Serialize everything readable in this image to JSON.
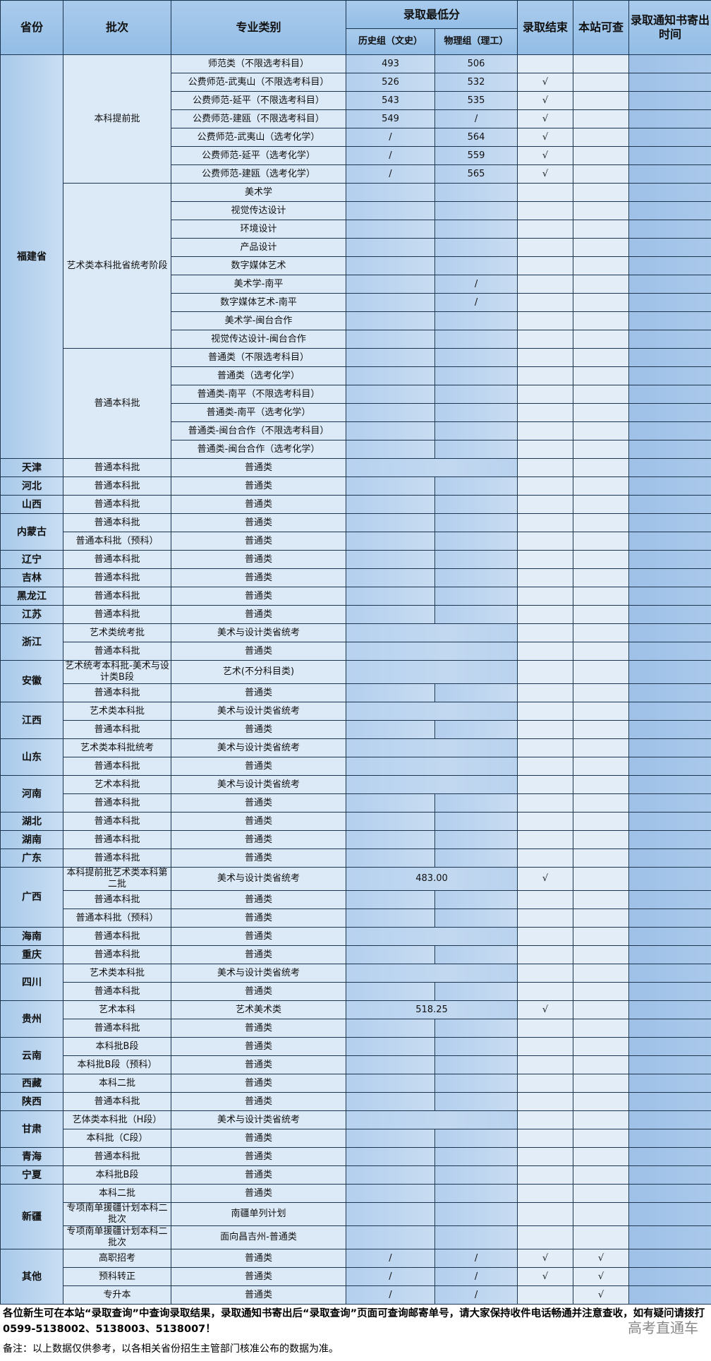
{
  "header": {
    "province": "省份",
    "batch": "批次",
    "major": "专业类别",
    "min_score": "录取最低分",
    "history": "历史组（文史）",
    "physics": "物理组（理工）",
    "done": "录取结束",
    "query": "本站可查",
    "notice_time": "录取通知书寄出时间"
  },
  "provinces": [
    {
      "name": "福建省",
      "batches": [
        {
          "name": "本科提前批",
          "rows": [
            {
              "major": "师范类（不限选考科目）",
              "history": "493",
              "physics": "506",
              "done": ""
            },
            {
              "major": "公费师范-武夷山（不限选考科目）",
              "history": "526",
              "physics": "532",
              "done": "√"
            },
            {
              "major": "公费师范-延平（不限选考科目）",
              "history": "543",
              "physics": "535",
              "done": "√"
            },
            {
              "major": "公费师范-建瓯（不限选考科目）",
              "history": "549",
              "physics": "/",
              "done": "√"
            },
            {
              "major": "公费师范-武夷山（选考化学）",
              "history": "/",
              "physics": "564",
              "done": "√"
            },
            {
              "major": "公费师范-延平（选考化学）",
              "history": "/",
              "physics": "559",
              "done": "√"
            },
            {
              "major": "公费师范-建瓯（选考化学）",
              "history": "/",
              "physics": "565",
              "done": "√"
            }
          ]
        },
        {
          "name": "艺术类本科批省统考阶段",
          "rows": [
            {
              "major": "美术学"
            },
            {
              "major": "视觉传达设计"
            },
            {
              "major": "环境设计"
            },
            {
              "major": "产品设计"
            },
            {
              "major": "数字媒体艺术"
            },
            {
              "major": "美术学-南平",
              "physics": "/"
            },
            {
              "major": "数字媒体艺术-南平",
              "physics": "/"
            },
            {
              "major": "美术学-闽台合作"
            },
            {
              "major": "视觉传达设计-闽台合作"
            }
          ]
        },
        {
          "name": "普通本科批",
          "rows": [
            {
              "major": "普通类（不限选考科目）"
            },
            {
              "major": "普通类（选考化学）"
            },
            {
              "major": "普通类-南平（不限选考科目）"
            },
            {
              "major": "普通类-南平（选考化学）"
            },
            {
              "major": "普通类-闽台合作（不限选考科目）"
            },
            {
              "major": "普通类-闽台合作（选考化学）"
            }
          ]
        }
      ]
    },
    {
      "name": "天津",
      "batches": [
        {
          "name": "普通本科批",
          "rows": [
            {
              "major": "普通类",
              "merged": true
            }
          ]
        }
      ]
    },
    {
      "name": "河北",
      "batches": [
        {
          "name": "普通本科批",
          "rows": [
            {
              "major": "普通类"
            }
          ]
        }
      ]
    },
    {
      "name": "山西",
      "batches": [
        {
          "name": "普通本科批",
          "rows": [
            {
              "major": "普通类"
            }
          ]
        }
      ]
    },
    {
      "name": "内蒙古",
      "batches": [
        {
          "name": "普通本科批",
          "rows": [
            {
              "major": "普通类"
            }
          ]
        },
        {
          "name": "普通本科批（预科）",
          "rows": [
            {
              "major": "普通类"
            }
          ]
        }
      ]
    },
    {
      "name": "辽宁",
      "batches": [
        {
          "name": "普通本科批",
          "rows": [
            {
              "major": "普通类"
            }
          ]
        }
      ]
    },
    {
      "name": "吉林",
      "batches": [
        {
          "name": "普通本科批",
          "rows": [
            {
              "major": "普通类"
            }
          ]
        }
      ]
    },
    {
      "name": "黑龙江",
      "batches": [
        {
          "name": "普通本科批",
          "rows": [
            {
              "major": "普通类"
            }
          ]
        }
      ]
    },
    {
      "name": "江苏",
      "batches": [
        {
          "name": "普通本科批",
          "rows": [
            {
              "major": "普通类"
            }
          ]
        }
      ]
    },
    {
      "name": "浙江",
      "batches": [
        {
          "name": "艺术类统考批",
          "rows": [
            {
              "major": "美术与设计类省统考",
              "merged": true
            }
          ]
        },
        {
          "name": "普通本科批",
          "rows": [
            {
              "major": "普通类",
              "merged": true
            }
          ]
        }
      ]
    },
    {
      "name": "安徽",
      "batches": [
        {
          "name": "艺术统考本科批-美术与设计类B段",
          "rows": [
            {
              "major": "艺术(不分科目类)",
              "merged": true
            }
          ]
        },
        {
          "name": "普通本科批",
          "rows": [
            {
              "major": "普通类"
            }
          ]
        }
      ]
    },
    {
      "name": "江西",
      "batches": [
        {
          "name": "艺术类本科批",
          "rows": [
            {
              "major": "美术与设计类省统考",
              "merged": true
            }
          ]
        },
        {
          "name": "普通本科批",
          "rows": [
            {
              "major": "普通类"
            }
          ]
        }
      ]
    },
    {
      "name": "山东",
      "batches": [
        {
          "name": "艺术类本科批统考",
          "rows": [
            {
              "major": "美术与设计类省统考",
              "merged": true
            }
          ]
        },
        {
          "name": "普通本科批",
          "rows": [
            {
              "major": "普通类",
              "merged": true
            }
          ]
        }
      ]
    },
    {
      "name": "河南",
      "batches": [
        {
          "name": "艺术本科批",
          "rows": [
            {
              "major": "美术与设计类省统考",
              "merged": true
            }
          ]
        },
        {
          "name": "普通本科批",
          "rows": [
            {
              "major": "普通类"
            }
          ]
        }
      ]
    },
    {
      "name": "湖北",
      "batches": [
        {
          "name": "普通本科批",
          "rows": [
            {
              "major": "普通类"
            }
          ]
        }
      ]
    },
    {
      "name": "湖南",
      "batches": [
        {
          "name": "普通本科批",
          "rows": [
            {
              "major": "普通类"
            }
          ]
        }
      ]
    },
    {
      "name": "广东",
      "batches": [
        {
          "name": "普通本科批",
          "rows": [
            {
              "major": "普通类"
            }
          ]
        }
      ]
    },
    {
      "name": "广西",
      "batches": [
        {
          "name": "本科提前批艺术类本科第二批",
          "rows": [
            {
              "major": "美术与设计类省统考",
              "merged": true,
              "score": "483.00",
              "done": "√"
            }
          ]
        },
        {
          "name": "普通本科批",
          "rows": [
            {
              "major": "普通类"
            }
          ]
        },
        {
          "name": "普通本科批（预科）",
          "rows": [
            {
              "major": "普通类"
            }
          ]
        }
      ]
    },
    {
      "name": "海南",
      "batches": [
        {
          "name": "普通本科批",
          "rows": [
            {
              "major": "普通类",
              "merged": true
            }
          ]
        }
      ]
    },
    {
      "name": "重庆",
      "batches": [
        {
          "name": "普通本科批",
          "rows": [
            {
              "major": "普通类"
            }
          ]
        }
      ]
    },
    {
      "name": "四川",
      "batches": [
        {
          "name": "艺术类本科批",
          "rows": [
            {
              "major": "美术与设计类省统考",
              "merged": true
            }
          ]
        },
        {
          "name": "普通本科批",
          "rows": [
            {
              "major": "普通类"
            }
          ]
        }
      ]
    },
    {
      "name": "贵州",
      "batches": [
        {
          "name": "艺术本科",
          "rows": [
            {
              "major": "艺术美术类",
              "merged": true,
              "score": "518.25",
              "done": "√"
            }
          ]
        },
        {
          "name": "普通本科批",
          "rows": [
            {
              "major": "普通类"
            }
          ]
        }
      ]
    },
    {
      "name": "云南",
      "batches": [
        {
          "name": "本科批B段",
          "rows": [
            {
              "major": "普通类"
            }
          ]
        },
        {
          "name": "本科批B段（预科）",
          "rows": [
            {
              "major": "普通类"
            }
          ]
        }
      ]
    },
    {
      "name": "西藏",
      "batches": [
        {
          "name": "本科二批",
          "rows": [
            {
              "major": "普通类"
            }
          ]
        }
      ]
    },
    {
      "name": "陕西",
      "batches": [
        {
          "name": "普通本科批",
          "rows": [
            {
              "major": "普通类"
            }
          ]
        }
      ]
    },
    {
      "name": "甘肃",
      "batches": [
        {
          "name": "艺体类本科批（H段）",
          "rows": [
            {
              "major": "美术与设计类省统考",
              "merged": true
            }
          ]
        },
        {
          "name": "本科批（C段）",
          "rows": [
            {
              "major": "普通类"
            }
          ]
        }
      ]
    },
    {
      "name": "青海",
      "batches": [
        {
          "name": "普通本科批",
          "rows": [
            {
              "major": "普通类"
            }
          ]
        }
      ]
    },
    {
      "name": "宁夏",
      "batches": [
        {
          "name": "本科批B段",
          "rows": [
            {
              "major": "普通类"
            }
          ]
        }
      ]
    },
    {
      "name": "新疆",
      "batches": [
        {
          "name": "本科二批",
          "rows": [
            {
              "major": "普通类"
            }
          ]
        },
        {
          "name": "专项南单援疆计划本科二批次",
          "rows": [
            {
              "major": "南疆单列计划"
            }
          ]
        },
        {
          "name": "专项南单援疆计划本科二批次",
          "rows": [
            {
              "major": "面向昌吉州-普通类"
            }
          ]
        }
      ]
    },
    {
      "name": "其他",
      "batches": [
        {
          "name": "高职招考",
          "rows": [
            {
              "major": "普通类",
              "history": "/",
              "physics": "/",
              "done": "√",
              "query": "√"
            }
          ]
        },
        {
          "name": "预科转正",
          "rows": [
            {
              "major": "普通类",
              "history": "/",
              "physics": "/",
              "done": "√",
              "query": "√"
            }
          ]
        },
        {
          "name": "专升本",
          "rows": [
            {
              "major": "普通类",
              "history": "/",
              "physics": "/",
              "query": "√"
            }
          ]
        }
      ]
    }
  ],
  "footer": {
    "line1": "各位新生可在本站“录取查询”中查询录取结果，录取通知书寄出后“录取查询”页面可查询邮寄单号，请大家保持收件电话畅通并注意查收，如有疑问请拨打0599-5138002、5138003、5138007！",
    "note": "备注：以上数据仅供参考，以各相关省份招生主管部门核准公布的数据为准。",
    "watermark": "高考直通车"
  },
  "colors": {
    "header": "#9dc3e6",
    "border": "#1b3550",
    "score_cell": "#bcd4ee",
    "last_column": "#a3c4e9"
  }
}
